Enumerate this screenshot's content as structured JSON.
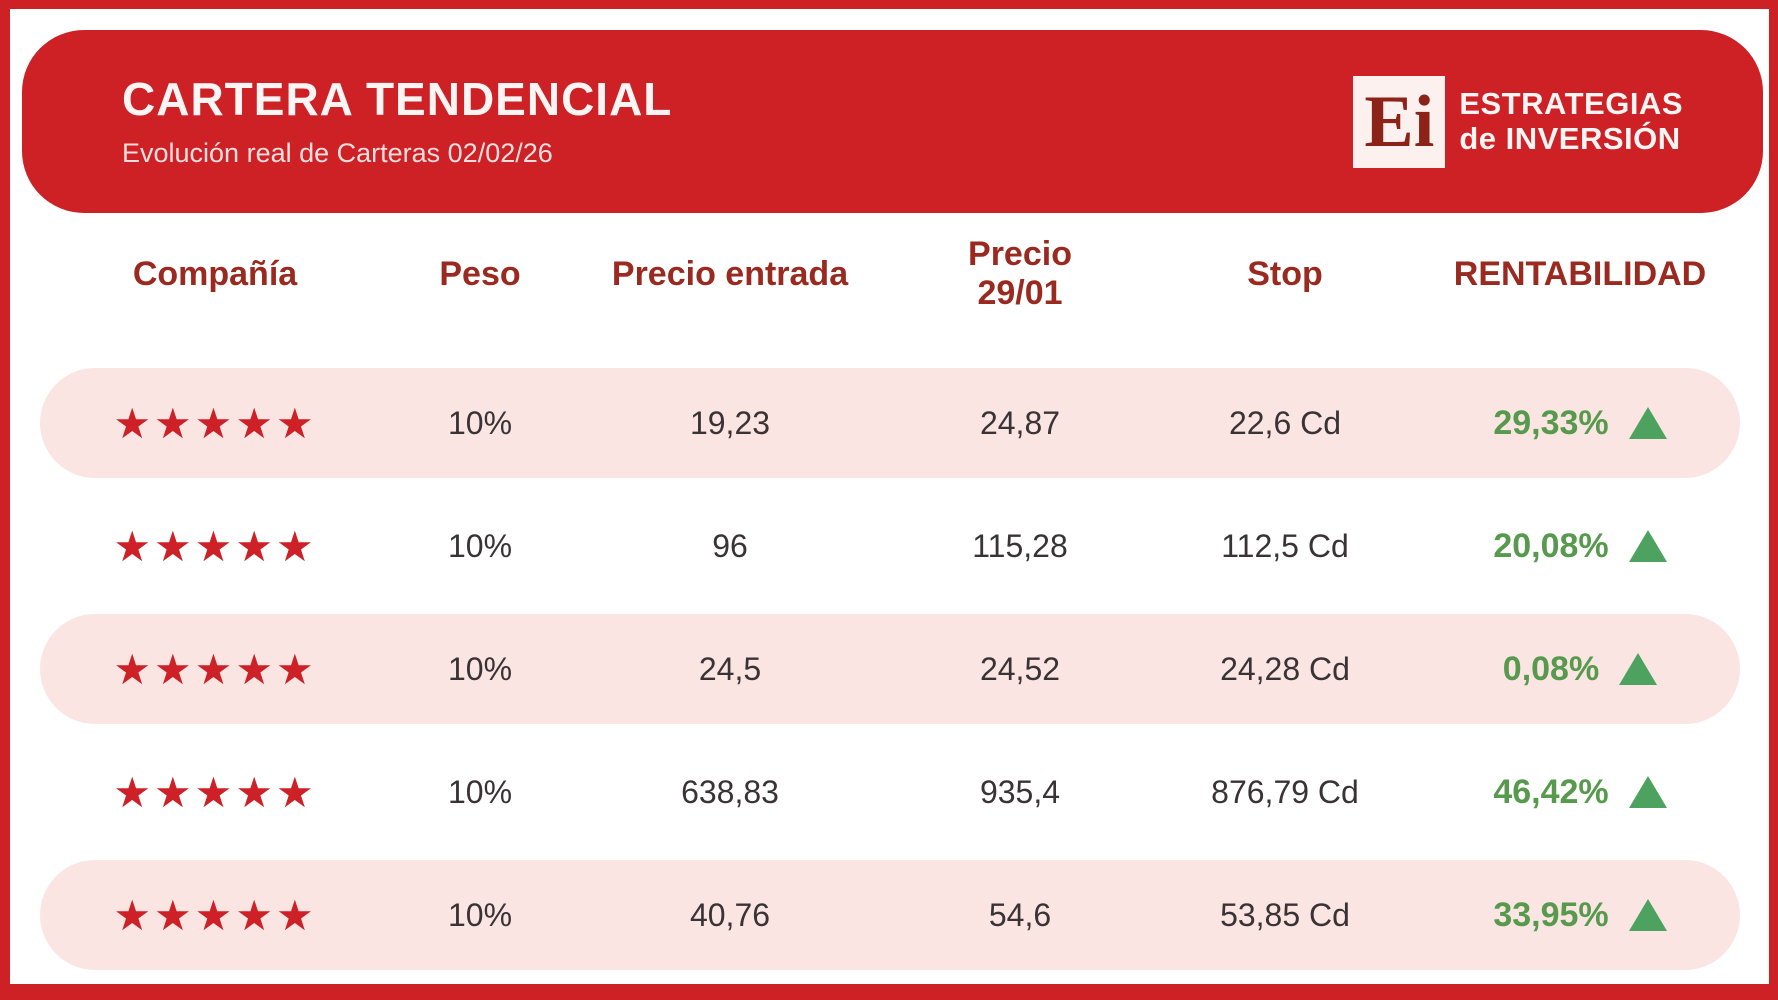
{
  "colors": {
    "accent_red": "#cd2126",
    "header_text_red": "#9a2a20",
    "row_pink": "#fae5e3",
    "value_text": "#3a3335",
    "positive_green": "#57994d",
    "triangle_green": "#4da25f",
    "star_red": "#ce2127"
  },
  "header": {
    "title": "CARTERA TENDENCIAL",
    "subtitle": "Evolución real de Carteras 02/02/26",
    "logo": {
      "monogram": "Ei",
      "line1": "ESTRATEGIAS",
      "line2": "de INVERSIÓN"
    }
  },
  "chart_data": {
    "type": "table",
    "title": "CARTERA TENDENCIAL",
    "subtitle": "Evolución real de Carteras 02/02/26",
    "columns": [
      "Compañía",
      "Peso",
      "Precio entrada",
      "Precio 29/01",
      "Stop",
      "RENTABILIDAD"
    ],
    "rows": [
      {
        "rating_stars": "★★★★★",
        "rating": 5,
        "peso": "10%",
        "precio_entrada": "19,23",
        "precio_2901": "24,87",
        "stop": "22,6 Cd",
        "rentabilidad": "29,33%",
        "trend": "up"
      },
      {
        "rating_stars": "★★★★★",
        "rating": 5,
        "peso": "10%",
        "precio_entrada": "96",
        "precio_2901": "115,28",
        "stop": "112,5 Cd",
        "rentabilidad": "20,08%",
        "trend": "up"
      },
      {
        "rating_stars": "★★★★★",
        "rating": 5,
        "peso": "10%",
        "precio_entrada": "24,5",
        "precio_2901": "24,52",
        "stop": "24,28 Cd",
        "rentabilidad": "0,08%",
        "trend": "up"
      },
      {
        "rating_stars": "★★★★★",
        "rating": 5,
        "peso": "10%",
        "precio_entrada": "638,83",
        "precio_2901": "935,4",
        "stop": "876,79 Cd",
        "rentabilidad": "46,42%",
        "trend": "up"
      },
      {
        "rating_stars": "★★★★★",
        "rating": 5,
        "peso": "10%",
        "precio_entrada": "40,76",
        "precio_2901": "54,6",
        "stop": "53,85 Cd",
        "rentabilidad": "33,95%",
        "trend": "up"
      }
    ]
  }
}
